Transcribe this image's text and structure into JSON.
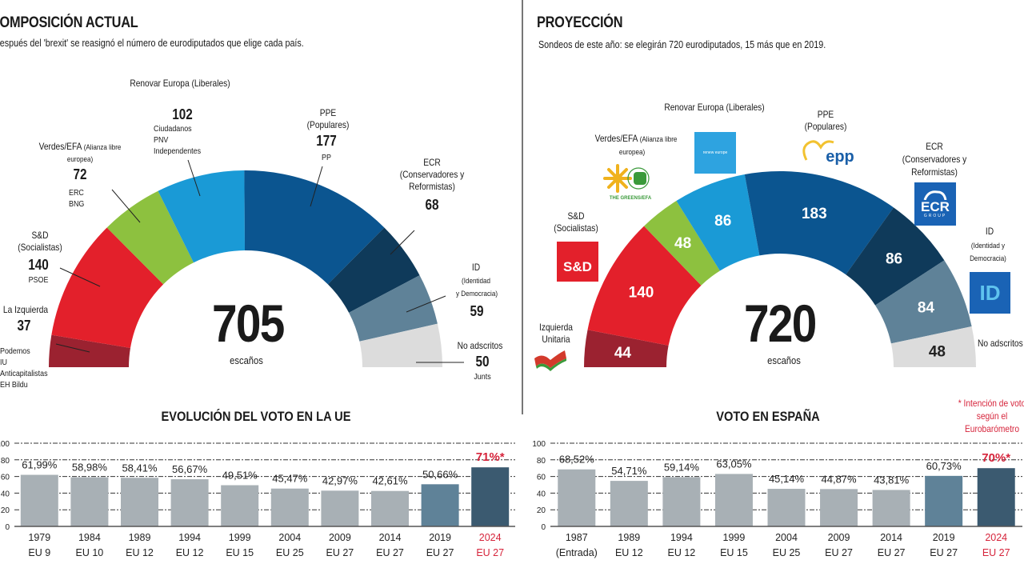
{
  "left": {
    "title": "COMPOSICIÓN ACTUAL",
    "subtitle": "Después del 'brexit' se reasignó el número de eurodiputados que elige cada país.",
    "total": "705",
    "total_label": "escaños",
    "groups": {
      "left": {
        "name": "La Izquierda",
        "seats": "37",
        "parties": [
          "Podemos",
          "IU",
          "Anticapitalistas",
          "EH Bildu"
        ]
      },
      "sd": {
        "name": "S&D",
        "sub": "(Socialistas)",
        "seats": "140",
        "parties": [
          "PSOE"
        ]
      },
      "greens": {
        "name": "Verdes/EFA",
        "sub": "(Alianza libre",
        "sub2": "europea)",
        "seats": "72",
        "parties": [
          "ERC",
          "BNG"
        ]
      },
      "renew": {
        "name": "Renovar Europa (Liberales)",
        "seats": "102",
        "parties": [
          "Ciudadanos",
          "PNV",
          "Independentes"
        ]
      },
      "epp": {
        "name": "PPE",
        "sub": "(Populares)",
        "seats": "177",
        "parties": [
          "PP"
        ]
      },
      "ecr": {
        "name": "ECR",
        "sub": "(Conservadores y",
        "sub2": "Reformistas)",
        "seats": "68"
      },
      "id": {
        "name": "ID",
        "sub": "(Identidad",
        "sub2": "y Democracia)",
        "seats": "59"
      },
      "ni": {
        "name": "No adscritos",
        "seats": "50",
        "parties": [
          "Junts"
        ]
      }
    }
  },
  "right": {
    "title": "PROYECCIÓN",
    "subtitle": "Sondeos de este año: se elegirán 720 eurodiputados, 15 más que en 2019.",
    "total": "720",
    "total_label": "escaños",
    "groups": {
      "left": {
        "name": "Izquierda",
        "name2": "Unitaria"
      },
      "sd": {
        "name": "S&D",
        "sub": "(Socialistas)",
        "logo": "S&D"
      },
      "greens": {
        "name": "Verdes/EFA",
        "sub": "(Alianza libre",
        "sub2": "europea)",
        "logo": "THE GREENS/EFA"
      },
      "renew": {
        "name": "Renovar Europa (Liberales)",
        "logo": "renew europe"
      },
      "epp": {
        "name": "PPE",
        "sub": "(Populares)",
        "logo": "epp"
      },
      "ecr": {
        "name": "ECR",
        "sub": "(Conservadores y",
        "sub2": "Reformistas)",
        "logo": "ECR",
        "logo_sub": "GROUP"
      },
      "id": {
        "name": "ID",
        "sub": "(Identidad y",
        "sub2": "Democracia)",
        "logo": "ID"
      },
      "ni": {
        "name": "No adscritos"
      }
    }
  },
  "colors": {
    "left": "#9b2230",
    "sd": "#e3202b",
    "greens": "#8dc13f",
    "renew": "#1a9ad6",
    "epp": "#0b5590",
    "ecr": "#0f3a5a",
    "id": "#5f8298",
    "ni": "#dcdcdc",
    "bar_past": "#a8b0b5",
    "bar_2019": "#5f8298",
    "bar_2024": "#3b5a70",
    "accent_red": "#d6243b"
  },
  "eu_bars": {
    "title": "EVOLUCIÓN DEL VOTO EN LA UE"
  },
  "es_bars": {
    "title": "VOTO EN  ESPAÑA",
    "note": [
      "* Intención de voto",
      "según el",
      "Eurobarómetro"
    ]
  },
  "chart_data": [
    {
      "type": "pie",
      "title": "COMPOSICIÓN ACTUAL",
      "subtype": "parliament-semicircle",
      "categories": [
        "La Izquierda",
        "S&D",
        "Verdes/EFA",
        "Renovar Europa",
        "PPE",
        "ECR",
        "ID",
        "No adscritos"
      ],
      "values": [
        37,
        140,
        72,
        102,
        177,
        68,
        59,
        50
      ],
      "total": 705
    },
    {
      "type": "pie",
      "title": "PROYECCIÓN",
      "subtype": "parliament-semicircle",
      "categories": [
        "Izquierda Unitaria",
        "S&D",
        "Verdes/EFA",
        "Renovar Europa",
        "PPE",
        "ECR",
        "ID",
        "No adscritos"
      ],
      "values": [
        44,
        140,
        48,
        86,
        183,
        86,
        84,
        48
      ],
      "total": 720
    },
    {
      "type": "bar",
      "title": "EVOLUCIÓN DEL VOTO EN LA UE",
      "categories": [
        "1979",
        "1984",
        "1989",
        "1994",
        "1999",
        "2004",
        "2009",
        "2014",
        "2019",
        "2024"
      ],
      "sublabels": [
        "EU 9",
        "EU 10",
        "EU 12",
        "EU 12",
        "EU 15",
        "EU 25",
        "EU 27",
        "EU 27",
        "EU 27",
        "EU 27"
      ],
      "values": [
        61.99,
        58.98,
        58.41,
        56.67,
        49.51,
        45.47,
        42.97,
        42.61,
        50.66,
        71
      ],
      "value_labels": [
        "61,99%",
        "58,98%",
        "58,41%",
        "56,67%",
        "49,51%",
        "45,47%",
        "42,97%",
        "42,61%",
        "50,66%",
        "71%*"
      ],
      "yticks": [
        0,
        20,
        40,
        60,
        80,
        100
      ],
      "ylim": [
        0,
        100
      ],
      "grid": true,
      "xlabel": "",
      "ylabel": ""
    },
    {
      "type": "bar",
      "title": "VOTO EN  ESPAÑA",
      "categories": [
        "1987",
        "1989",
        "1994",
        "1999",
        "2004",
        "2009",
        "2014",
        "2019",
        "2024"
      ],
      "sublabels": [
        "(Entrada)",
        "EU 12",
        "EU 12",
        "EU 15",
        "EU 25",
        "EU 27",
        "EU 27",
        "EU 27",
        "EU 27"
      ],
      "values": [
        68.52,
        54.71,
        59.14,
        63.05,
        45.14,
        44.87,
        43.81,
        60.73,
        70
      ],
      "value_labels": [
        "68,52%",
        "54,71%",
        "59,14%",
        "63,05%",
        "45,14%",
        "44,87%",
        "43,81%",
        "60,73%",
        "70%*"
      ],
      "yticks": [
        0,
        20,
        40,
        60,
        80,
        100
      ],
      "ylim": [
        0,
        100
      ],
      "grid": true,
      "annotation": "* Intención de voto según el Eurobarómetro",
      "xlabel": "",
      "ylabel": ""
    }
  ]
}
